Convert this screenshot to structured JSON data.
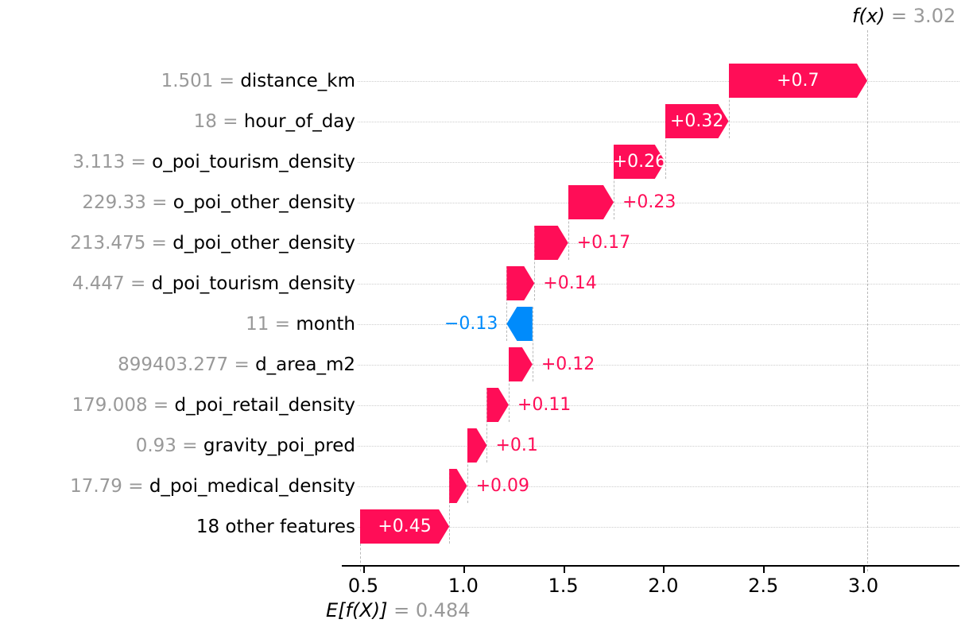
{
  "chart_data": {
    "type": "waterfall",
    "library_style": "shap-waterfall",
    "fx_annotation": {
      "math": "f(x)",
      "eq": " = 3.02"
    },
    "ef_annotation": {
      "math": "E[f(X)]",
      "eq": " = 0.484"
    },
    "base_value": 0.484,
    "final_value": 3.02,
    "xlim": [
      0.39,
      3.48
    ],
    "grid": "horizontal-dotted",
    "x_ticks": [
      {
        "value": 0.5,
        "label": "0.5"
      },
      {
        "value": 1.0,
        "label": "1.0"
      },
      {
        "value": 1.5,
        "label": "1.5"
      },
      {
        "value": 2.0,
        "label": "2.0"
      },
      {
        "value": 2.5,
        "label": "2.5"
      },
      {
        "value": 3.0,
        "label": "3.0"
      }
    ],
    "rows": [
      {
        "feature": "distance_km",
        "value": "1.501",
        "shap": 0.7,
        "label": "+0.7",
        "label_pos": "inside"
      },
      {
        "feature": "hour_of_day",
        "value": "18",
        "shap": 0.32,
        "label": "+0.32",
        "label_pos": "inside"
      },
      {
        "feature": "o_poi_tourism_density",
        "value": "3.113",
        "shap": 0.26,
        "label": "+0.26",
        "label_pos": "inside"
      },
      {
        "feature": "o_poi_other_density",
        "value": "229.33",
        "shap": 0.23,
        "label": "+0.23",
        "label_pos": "outside"
      },
      {
        "feature": "d_poi_other_density",
        "value": "213.475",
        "shap": 0.17,
        "label": "+0.17",
        "label_pos": "outside"
      },
      {
        "feature": "d_poi_tourism_density",
        "value": "4.447",
        "shap": 0.14,
        "label": "+0.14",
        "label_pos": "outside"
      },
      {
        "feature": "month",
        "value": "11",
        "shap": -0.13,
        "label": "−0.13",
        "label_pos": "outside"
      },
      {
        "feature": "d_area_m2",
        "value": "899403.277",
        "shap": 0.12,
        "label": "+0.12",
        "label_pos": "outside"
      },
      {
        "feature": "d_poi_retail_density",
        "value": "179.008",
        "shap": 0.11,
        "label": "+0.11",
        "label_pos": "outside"
      },
      {
        "feature": "gravity_poi_pred",
        "value": "0.93",
        "shap": 0.1,
        "label": "+0.1",
        "label_pos": "outside"
      },
      {
        "feature": "d_poi_medical_density",
        "value": "17.79",
        "shap": 0.09,
        "label": "+0.09",
        "label_pos": "outside"
      },
      {
        "feature": "18 other features",
        "value": null,
        "shap": 0.45,
        "label": "+0.45",
        "label_pos": "inside"
      }
    ],
    "colors": {
      "positive": "#ff0d57",
      "negative": "#008bfb",
      "gray_text": "#999999",
      "grid_dotted": "#cdcdcd",
      "connector_dashed": "#b9b9b9",
      "axis": "#000000"
    }
  }
}
